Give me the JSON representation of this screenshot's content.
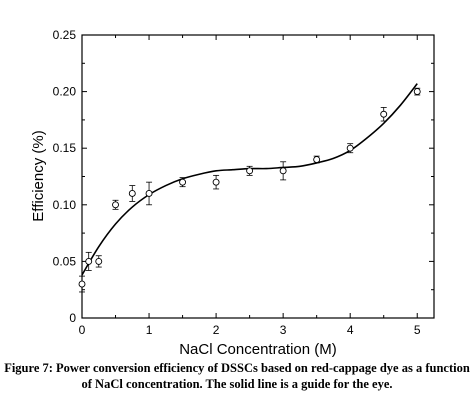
{
  "chart_data": {
    "type": "scatter",
    "xlabel": "NaCl Concentration (M)",
    "ylabel": "Efficiency (%)",
    "xlim": [
      0,
      5.25
    ],
    "ylim": [
      0,
      0.25
    ],
    "x_ticks": [
      "0",
      "1",
      "2",
      "3",
      "4",
      "5"
    ],
    "y_ticks": [
      "0",
      "0.05",
      "0.10",
      "0.15",
      "0.20",
      "0.25"
    ],
    "grid": false,
    "legend": "none",
    "marker": "open-circle",
    "series": [
      {
        "x": [
          0,
          0.1,
          0.25,
          0.5,
          0.75,
          1,
          1.5,
          2,
          2.5,
          3,
          3.5,
          4,
          4.5,
          5
        ],
        "y": [
          0.03,
          0.05,
          0.05,
          0.1,
          0.11,
          0.11,
          0.12,
          0.12,
          0.13,
          0.13,
          0.14,
          0.15,
          0.18,
          0.2
        ],
        "yerr": [
          0.007,
          0.008,
          0.005,
          0.004,
          0.007,
          0.01,
          0.004,
          0.006,
          0.004,
          0.008,
          0.003,
          0.004,
          0.006,
          0.003
        ]
      }
    ],
    "guide_line": {
      "x": [
        0,
        0.25,
        0.5,
        0.75,
        1,
        1.25,
        1.5,
        1.75,
        2,
        2.25,
        2.5,
        2.75,
        3,
        3.25,
        3.5,
        3.75,
        4,
        4.25,
        4.5,
        4.75,
        5
      ],
      "y": [
        0.038,
        0.063,
        0.083,
        0.098,
        0.109,
        0.117,
        0.123,
        0.127,
        0.13,
        0.131,
        0.132,
        0.132,
        0.133,
        0.134,
        0.137,
        0.141,
        0.148,
        0.159,
        0.172,
        0.188,
        0.207
      ]
    }
  },
  "caption": {
    "line1": "Figure 7: Power conversion efficiency of DSSCs based on red-cappage dye as a function",
    "line2": "of NaCl concentration. The solid line is a guide for the eye."
  }
}
